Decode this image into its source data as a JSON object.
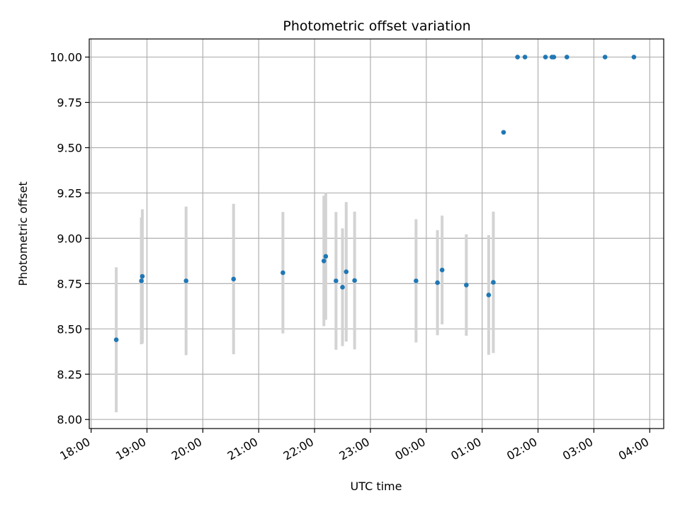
{
  "chart_data": {
    "type": "scatter",
    "title": "Photometric offset variation",
    "xlabel": "UTC time",
    "ylabel": "Photometric offset",
    "x_axis_type": "time",
    "x_tick_labels": [
      "18:00",
      "19:00",
      "20:00",
      "21:00",
      "22:00",
      "23:00",
      "00:00",
      "01:00",
      "02:00",
      "03:00",
      "04:00"
    ],
    "y_ticks": [
      "8.00",
      "8.25",
      "8.50",
      "8.75",
      "9.00",
      "9.25",
      "9.50",
      "9.75",
      "10.00"
    ],
    "ylim": [
      7.95,
      10.1
    ],
    "xlim": [
      "17:58",
      "04:15"
    ],
    "grid": true,
    "colors": {
      "points": "#1f77b4",
      "errorbars": "#d3d3d3",
      "grid": "#b0b0b0"
    },
    "points": [
      {
        "x": "18:27",
        "y": 8.44,
        "err": 0.4
      },
      {
        "x": "18:54",
        "y": 8.765,
        "err": 0.35
      },
      {
        "x": "18:55",
        "y": 8.79,
        "err": 0.37
      },
      {
        "x": "19:42",
        "y": 8.765,
        "err": 0.41
      },
      {
        "x": "20:33",
        "y": 8.775,
        "err": 0.415
      },
      {
        "x": "21:26",
        "y": 8.81,
        "err": 0.335
      },
      {
        "x": "22:10",
        "y": 8.875,
        "err": 0.36
      },
      {
        "x": "22:12",
        "y": 8.9,
        "err": 0.35
      },
      {
        "x": "22:23",
        "y": 8.765,
        "err": 0.38
      },
      {
        "x": "22:30",
        "y": 8.73,
        "err": 0.325
      },
      {
        "x": "22:34",
        "y": 8.815,
        "err": 0.385
      },
      {
        "x": "22:43",
        "y": 8.767,
        "err": 0.38
      },
      {
        "x": "23:49",
        "y": 8.765,
        "err": 0.34
      },
      {
        "x": "00:12",
        "y": 8.755,
        "err": 0.29
      },
      {
        "x": "00:17",
        "y": 8.825,
        "err": 0.3
      },
      {
        "x": "00:43",
        "y": 8.742,
        "err": 0.28
      },
      {
        "x": "01:07",
        "y": 8.687,
        "err": 0.33
      },
      {
        "x": "01:12",
        "y": 8.757,
        "err": 0.39
      },
      {
        "x": "01:23",
        "y": 9.585,
        "err": 0
      },
      {
        "x": "01:38",
        "y": 10.0,
        "err": 0
      },
      {
        "x": "01:46",
        "y": 10.0,
        "err": 0
      },
      {
        "x": "02:08",
        "y": 10.0,
        "err": 0
      },
      {
        "x": "02:15",
        "y": 10.0,
        "err": 0
      },
      {
        "x": "02:17",
        "y": 10.0,
        "err": 0
      },
      {
        "x": "02:31",
        "y": 10.0,
        "err": 0
      },
      {
        "x": "03:12",
        "y": 10.0,
        "err": 0
      },
      {
        "x": "03:43",
        "y": 10.0,
        "err": 0
      }
    ]
  }
}
